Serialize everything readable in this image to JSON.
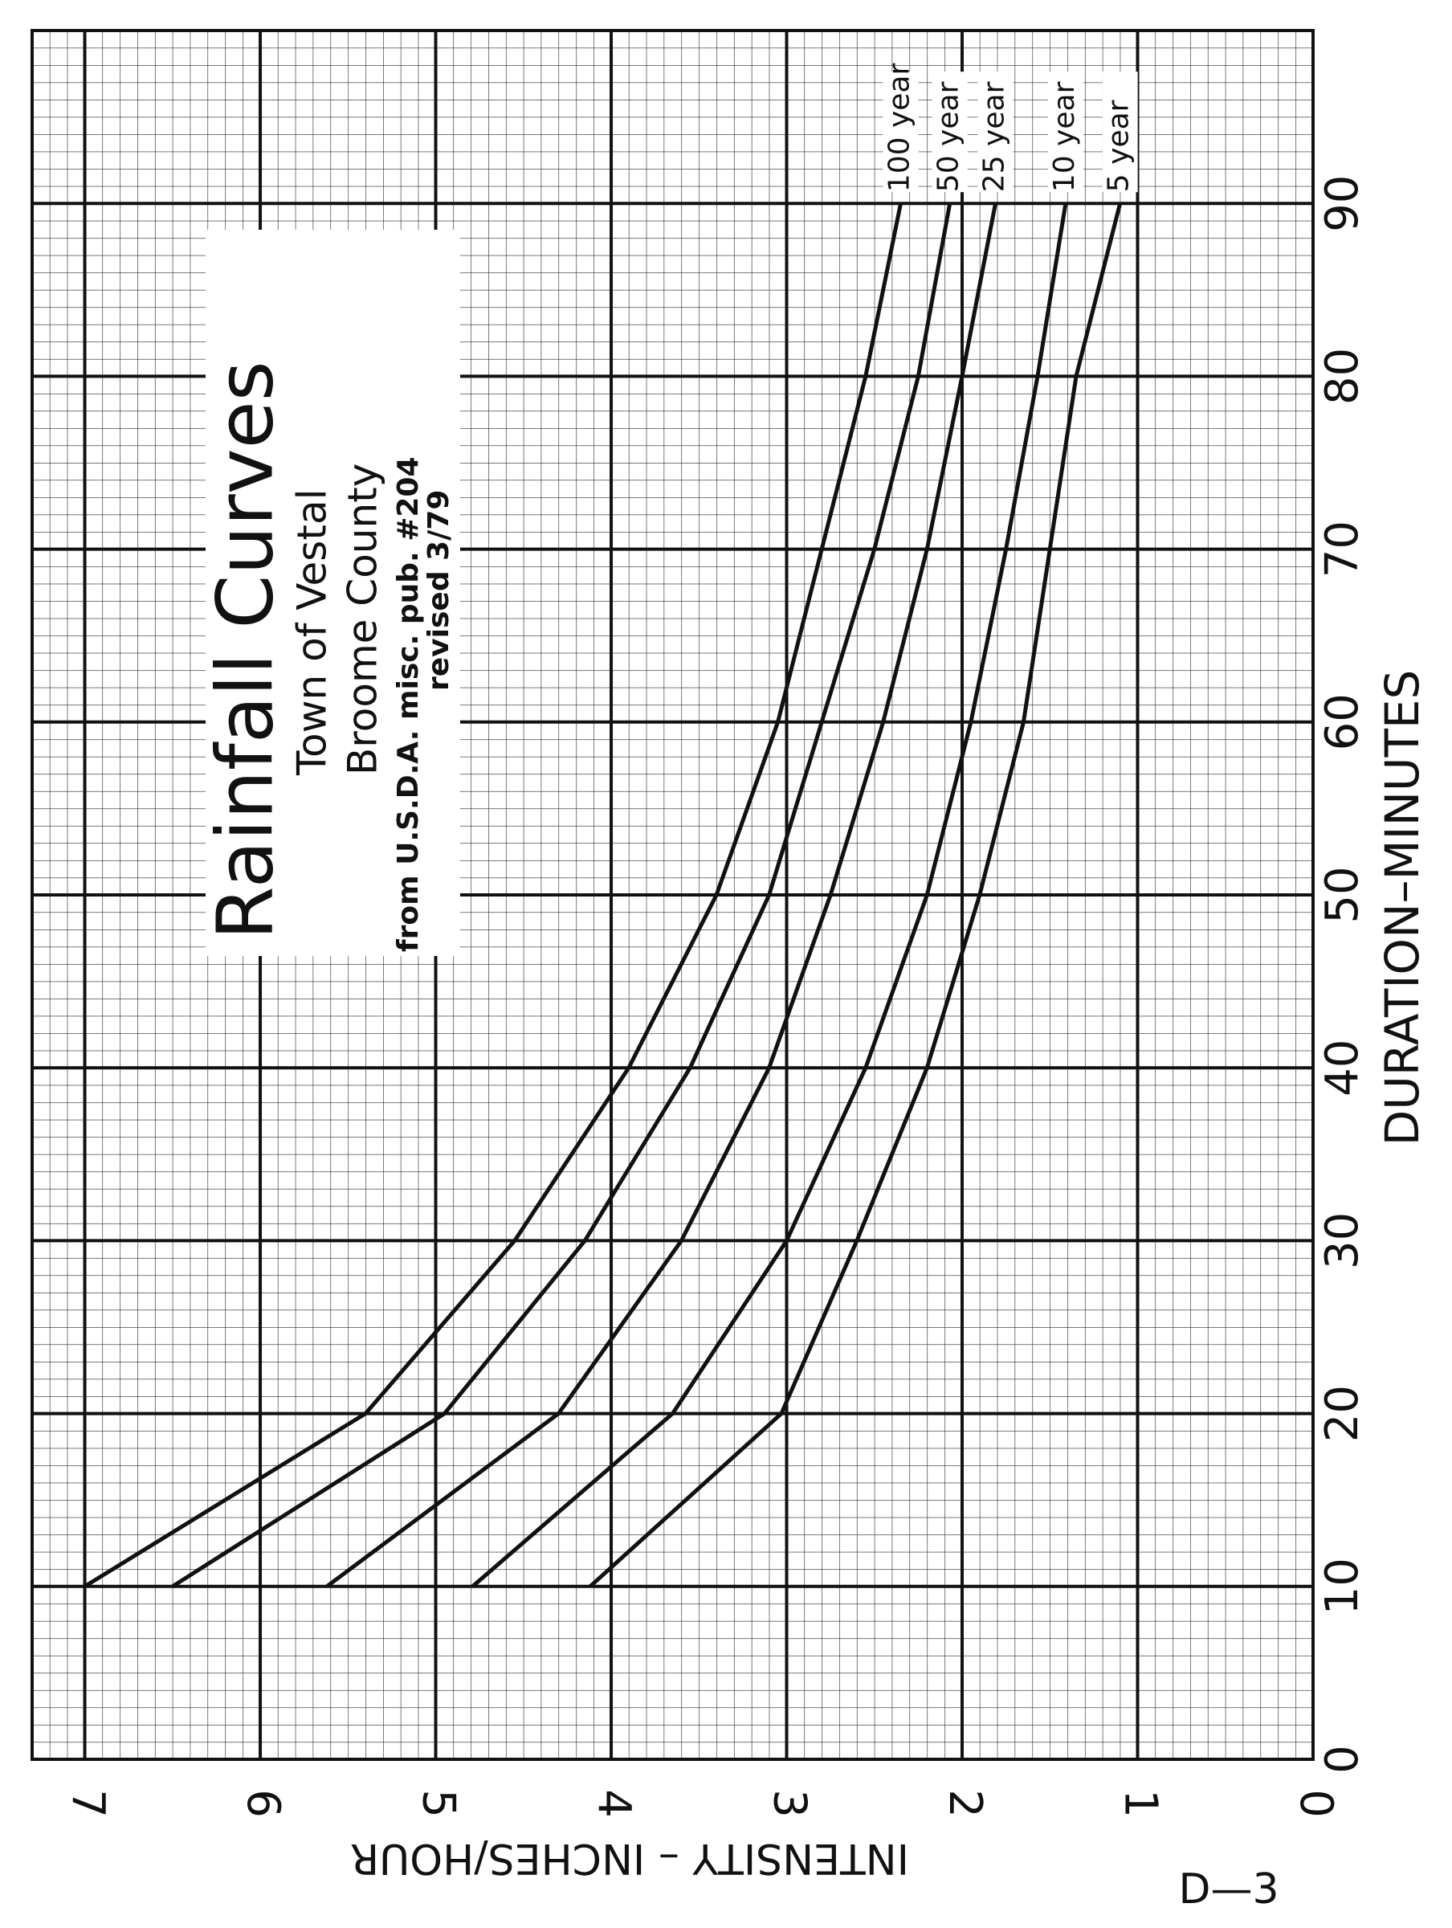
{
  "chart_data": {
    "type": "line",
    "title": "Rainfall Curves",
    "subtitle_lines": [
      "Town of Vestal",
      "Broome County",
      "from U.S.D.A. misc. pub. #204",
      "revised 3/79"
    ],
    "x_label": "DURATION–MINUTES",
    "y_label": "INTENSITY – INCHES/HOUR",
    "page_code": "D—3",
    "x": [
      10,
      20,
      30,
      40,
      50,
      60,
      70,
      80,
      90
    ],
    "series": [
      {
        "name": "100 year",
        "color": "#111111",
        "values": [
          7.0,
          5.4,
          4.55,
          3.9,
          3.4,
          3.05,
          2.8,
          2.55,
          2.35
        ]
      },
      {
        "name": "50 year",
        "color": "#111111",
        "values": [
          6.5,
          4.95,
          4.15,
          3.55,
          3.1,
          2.8,
          2.5,
          2.25,
          2.07
        ]
      },
      {
        "name": "25 year",
        "color": "#111111",
        "values": [
          5.62,
          4.3,
          3.6,
          3.1,
          2.75,
          2.45,
          2.2,
          2.0,
          1.81
        ]
      },
      {
        "name": "10 year",
        "color": "#111111",
        "values": [
          4.79,
          3.65,
          3.0,
          2.55,
          2.2,
          1.95,
          1.75,
          1.57,
          1.41
        ]
      },
      {
        "name": "5 year",
        "color": "#111111",
        "values": [
          4.12,
          3.03,
          2.6,
          2.2,
          1.9,
          1.65,
          1.5,
          1.35,
          1.1
        ]
      }
    ],
    "xlim": [
      0,
      100
    ],
    "xticks": [
      0,
      10,
      20,
      30,
      40,
      50,
      60,
      70,
      80,
      90
    ],
    "ylim": [
      0,
      7.3
    ],
    "yticks": [
      0,
      1,
      2,
      3,
      4,
      5,
      6,
      7
    ],
    "grid": true
  }
}
